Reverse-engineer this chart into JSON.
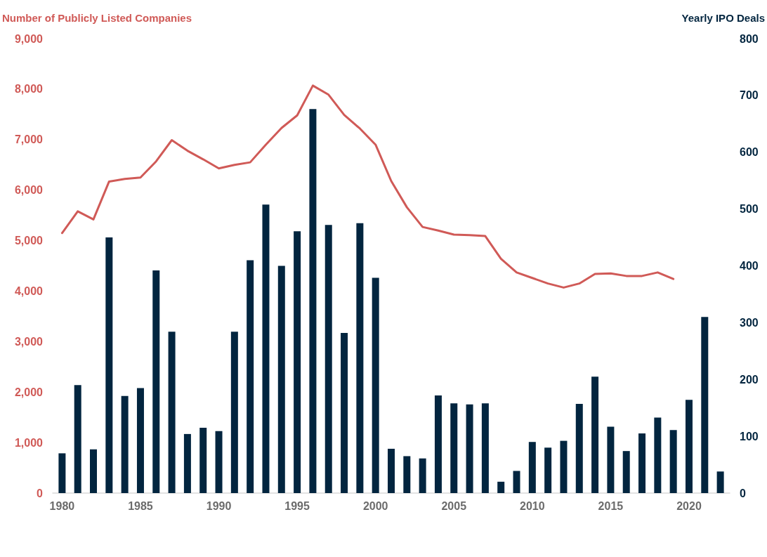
{
  "chart_data": {
    "type": "bar",
    "ylabel": "Number of Publicly Listed Companies",
    "y2label": "Yearly IPO Deals",
    "x": [
      1980,
      1981,
      1982,
      1983,
      1984,
      1985,
      1986,
      1987,
      1988,
      1989,
      1990,
      1991,
      1992,
      1993,
      1994,
      1995,
      1996,
      1997,
      1998,
      1999,
      2000,
      2001,
      2002,
      2003,
      2004,
      2005,
      2006,
      2007,
      2008,
      2009,
      2010,
      2011,
      2012,
      2013,
      2014,
      2015,
      2016,
      2017,
      2018,
      2019,
      2020,
      2021,
      2022
    ],
    "series": [
      {
        "axis": "y2",
        "color": "#02253f",
        "values": [
          70,
          190,
          77,
          450,
          171,
          185,
          392,
          284,
          104,
          115,
          109,
          284,
          410,
          508,
          400,
          461,
          676,
          472,
          282,
          475,
          379,
          78,
          65,
          61,
          172,
          158,
          156,
          158,
          20,
          39,
          90,
          80,
          92,
          157,
          205,
          117,
          74,
          105,
          133,
          111,
          164,
          310,
          38
        ]
      },
      {
        "type": "line",
        "axis": "y",
        "color": "#d05a57",
        "values": [
          5150,
          5580,
          5420,
          6170,
          6220,
          6250,
          6570,
          6990,
          6780,
          6610,
          6430,
          6500,
          6550,
          6900,
          7230,
          7480,
          8070,
          7890,
          7490,
          7220,
          6900,
          6180,
          5660,
          5270,
          5200,
          5120,
          5110,
          5090,
          4640,
          4370,
          4260,
          4150,
          4070,
          4150,
          4340,
          4350,
          4300,
          4300,
          4370,
          4240,
          null,
          null,
          null
        ]
      }
    ],
    "xlim": [
      1979.4,
      2022.6
    ],
    "xticks": [
      1980,
      1985,
      1990,
      1995,
      2000,
      2005,
      2010,
      2015,
      2020
    ],
    "ylim": [
      0,
      9000
    ],
    "yticks": [
      0,
      {
        "value": 1000,
        "label": "1,000"
      },
      {
        "value": 2000,
        "label": "2,000"
      },
      {
        "value": 3000,
        "label": "3,000"
      },
      {
        "value": 4000,
        "label": "4,000"
      },
      {
        "value": 5000,
        "label": "5,000"
      },
      {
        "value": 6000,
        "label": "6,000"
      },
      {
        "value": 7000,
        "label": "7,000"
      },
      {
        "value": 8000,
        "label": "8,000"
      },
      {
        "value": 9000,
        "label": "9,000"
      }
    ],
    "y2lim": [
      0,
      800
    ],
    "y2ticks": [
      0,
      100,
      200,
      300,
      400,
      500,
      600,
      700,
      800
    ],
    "grid": false,
    "marker": "none",
    "line_style": "solid"
  }
}
